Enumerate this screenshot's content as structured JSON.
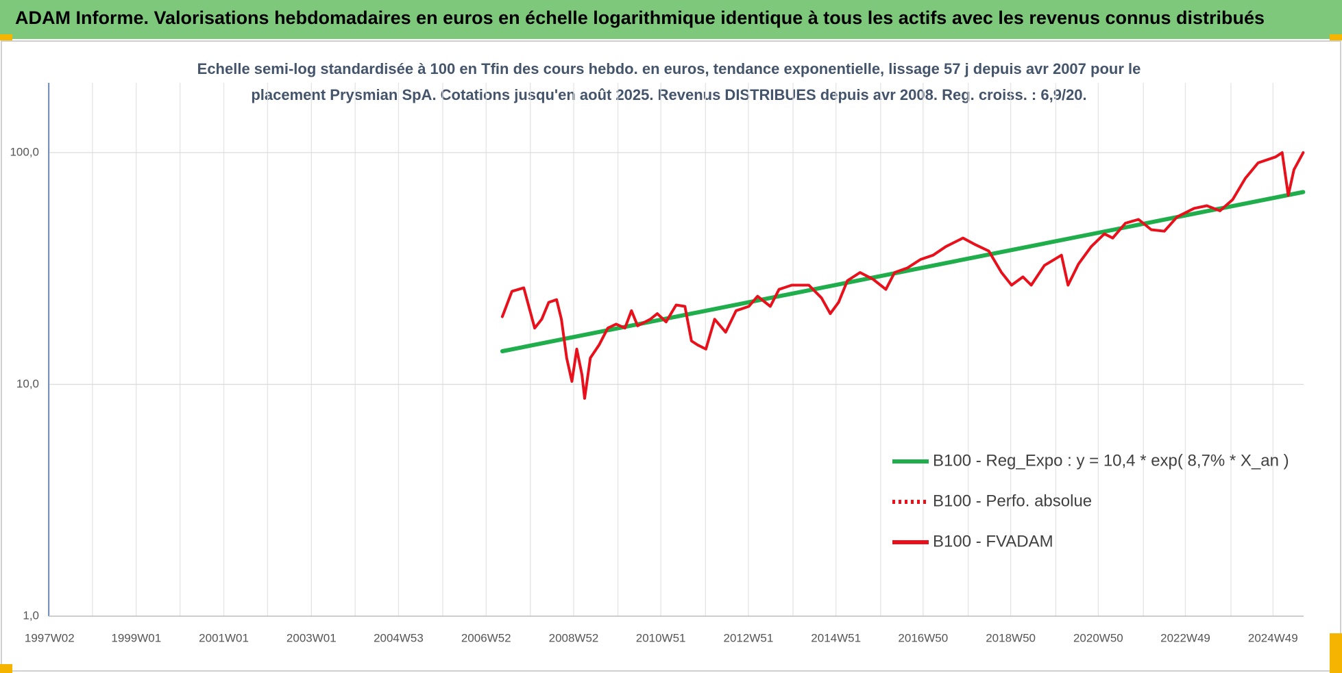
{
  "chart_data": {
    "type": "line",
    "header": "ADAM Informe. Valorisations hebdomadaires en euros en échelle logarithmique identique à tous les actifs avec les revenus connus distribués",
    "title": [
      "Echelle semi-log standardisée à 100 en Tfin des cours hebdo. en euros, tendance exponentielle, lissage 57 j depuis avr 2007 pour le",
      "placement Prysmian SpA. Cotations jusqu'en août 2025. Revenus DISTRIBUES depuis avr 2008. Reg. croiss. : 6,9/20."
    ],
    "log_y": true,
    "grid": true,
    "legend": "lower-right",
    "xlim": [
      1997.0,
      2025.66
    ],
    "xticks": [
      {
        "value": 1997.02,
        "label": "1997W02"
      },
      {
        "value": 1999.0,
        "label": "1999W01"
      },
      {
        "value": 2001.0,
        "label": "2001W01"
      },
      {
        "value": 2003.0,
        "label": "2003W01"
      },
      {
        "value": 2004.99,
        "label": "2004W53"
      },
      {
        "value": 2006.99,
        "label": "2006W52"
      },
      {
        "value": 2008.99,
        "label": "2008W52"
      },
      {
        "value": 2010.98,
        "label": "2010W51"
      },
      {
        "value": 2012.98,
        "label": "2012W51"
      },
      {
        "value": 2014.98,
        "label": "2014W51"
      },
      {
        "value": 2016.97,
        "label": "2016W50"
      },
      {
        "value": 2018.97,
        "label": "2018W50"
      },
      {
        "value": 2020.97,
        "label": "2020W50"
      },
      {
        "value": 2022.96,
        "label": "2022W49"
      },
      {
        "value": 2024.96,
        "label": "2024W49"
      }
    ],
    "xminor_grid": [
      1998,
      2000,
      2002,
      2004,
      2006,
      2008,
      2010,
      2012,
      2014,
      2016,
      2018,
      2020,
      2022,
      2024
    ],
    "ylim": [
      1,
      200
    ],
    "yticks": [
      {
        "value": 1,
        "label": "1,0"
      },
      {
        "value": 10,
        "label": "10,0"
      },
      {
        "value": 100,
        "label": "100,0"
      }
    ],
    "series": [
      {
        "name": "B100 - Reg_Expo : y = 10,4 * exp( 8,7% *  X_an )",
        "color": "#1fae4b",
        "style": "solid",
        "x": [
          2007.36,
          2025.65
        ],
        "values": [
          13.9,
          67.6
        ]
      },
      {
        "name": "B100 - Perfo. absolue",
        "color": "#e8101a",
        "style": "dotted",
        "x": [],
        "values": []
      },
      {
        "name": "B100 - FVADAM",
        "color": "#e8101a",
        "style": "solid",
        "x": [
          2007.36,
          2007.58,
          2007.85,
          2008.1,
          2008.26,
          2008.42,
          2008.6,
          2008.71,
          2008.83,
          2008.95,
          2009.06,
          2009.18,
          2009.24,
          2009.37,
          2009.57,
          2009.77,
          2009.96,
          2010.16,
          2010.31,
          2010.45,
          2010.74,
          2010.9,
          2011.1,
          2011.33,
          2011.53,
          2011.68,
          2011.82,
          2012.01,
          2012.21,
          2012.46,
          2012.7,
          2012.99,
          2013.19,
          2013.48,
          2013.68,
          2013.97,
          2014.36,
          2014.65,
          2014.85,
          2015.04,
          2015.24,
          2015.53,
          2015.83,
          2016.12,
          2016.32,
          2016.61,
          2016.91,
          2017.2,
          2017.49,
          2017.88,
          2018.17,
          2018.47,
          2018.76,
          2018.99,
          2019.25,
          2019.44,
          2019.74,
          2020.13,
          2020.28,
          2020.52,
          2020.81,
          2021.11,
          2021.3,
          2021.59,
          2021.89,
          2022.18,
          2022.48,
          2022.77,
          2023.16,
          2023.45,
          2023.75,
          2024.04,
          2024.33,
          2024.62,
          2025.02,
          2025.17,
          2025.31,
          2025.44,
          2025.65
        ],
        "values": [
          19.6,
          25.2,
          26.1,
          17.5,
          19.1,
          22.6,
          23.2,
          19.1,
          13.0,
          10.3,
          14.2,
          11.0,
          8.7,
          13.0,
          14.8,
          17.5,
          18.2,
          17.5,
          20.8,
          17.9,
          19.1,
          20.2,
          18.6,
          22.0,
          21.7,
          15.4,
          14.8,
          14.2,
          19.1,
          16.8,
          20.8,
          21.7,
          24.0,
          21.7,
          25.7,
          26.8,
          26.8,
          23.6,
          20.2,
          22.6,
          28.0,
          30.4,
          28.4,
          25.7,
          30.4,
          31.8,
          34.6,
          36.1,
          39.3,
          42.8,
          40.0,
          37.6,
          30.4,
          26.8,
          29.1,
          26.8,
          32.6,
          36.1,
          26.8,
          33.1,
          39.3,
          44.6,
          42.8,
          49.6,
          51.5,
          46.5,
          45.8,
          52.8,
          57.5,
          59.0,
          56.1,
          62.7,
          77.5,
          90.3,
          95.8,
          100,
          65.4,
          84.4,
          100
        ]
      }
    ]
  }
}
